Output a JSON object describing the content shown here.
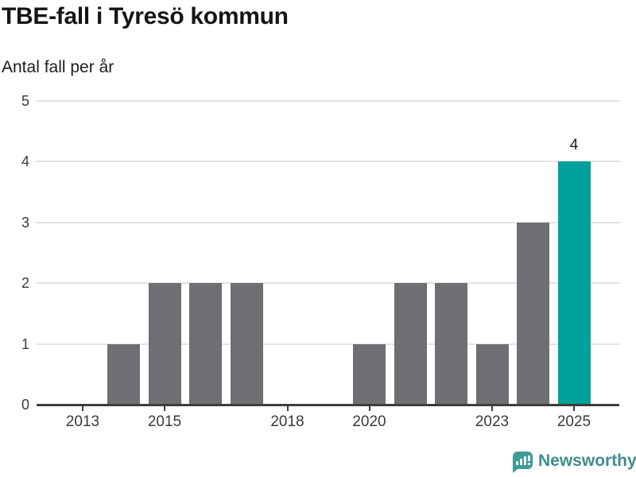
{
  "chart_data": {
    "type": "bar",
    "title": "TBE-fall i Tyresö kommun",
    "subtitle": "Antal fall per år",
    "xlabel": "",
    "ylabel": "Antal fall per år",
    "categories": [
      2013,
      2014,
      2015,
      2016,
      2017,
      2018,
      2019,
      2020,
      2021,
      2022,
      2023,
      2024,
      2025
    ],
    "values": [
      0,
      1,
      2,
      2,
      2,
      0,
      0,
      1,
      2,
      2,
      1,
      3,
      4
    ],
    "x_ticks": [
      {
        "year": 2013,
        "label": "2013"
      },
      {
        "year": 2015,
        "label": "2015"
      },
      {
        "year": 2018,
        "label": "2018"
      },
      {
        "year": 2020,
        "label": "2020"
      },
      {
        "year": 2023,
        "label": "2023"
      },
      {
        "year": 2025,
        "label": "2025"
      }
    ],
    "y_ticks": [
      0,
      1,
      2,
      3,
      4,
      5
    ],
    "ylim": [
      0,
      5
    ],
    "grid": "horizontal",
    "legend": "none",
    "bar_color": "#6e6e73",
    "highlight_color": "#00a19a",
    "highlight_category": 2025,
    "annotations": [
      {
        "category": 2025,
        "text": "4"
      }
    ]
  },
  "branding": {
    "name": "Newsworthy",
    "icon": "newsworthy-speech-bubble-chart-icon",
    "icon_color": "#3e9a96",
    "text_color": "#3e8c8e"
  }
}
